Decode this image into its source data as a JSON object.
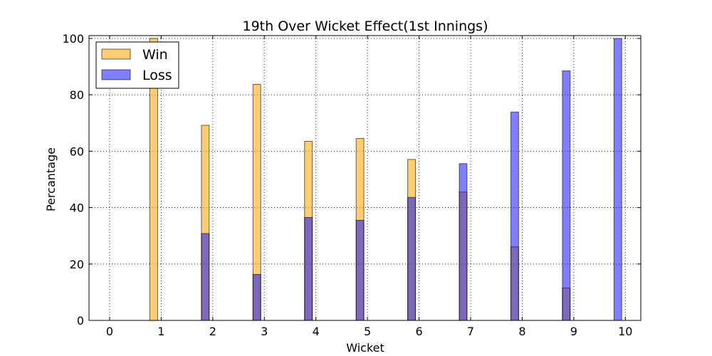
{
  "chart_data": {
    "type": "bar",
    "title": "19th Over Wicket Effect(1st Innings)",
    "xlabel": "Wicket",
    "ylabel": "Percantage",
    "xlim": [
      -0.4,
      10.3
    ],
    "ylim": [
      0,
      101
    ],
    "x_ticks": [
      0,
      1,
      2,
      3,
      4,
      5,
      6,
      7,
      8,
      9,
      10
    ],
    "y_ticks": [
      0,
      20,
      40,
      60,
      80,
      100
    ],
    "grid": true,
    "legend_position": "top-left",
    "bar_width": 0.15,
    "series": [
      {
        "name": "Win",
        "color": "#ffa500",
        "opacity": 0.55,
        "x": [
          1,
          2,
          3,
          4,
          5,
          6,
          7,
          8,
          9,
          10
        ],
        "values": [
          100,
          69.2,
          83.7,
          63.5,
          64.5,
          57.1,
          45.5,
          26.1,
          11.5,
          0
        ]
      },
      {
        "name": "Loss",
        "color": "#0000ff",
        "opacity": 0.5,
        "x": [
          1,
          2,
          3,
          4,
          5,
          6,
          7,
          8,
          9,
          10
        ],
        "values": [
          0,
          30.8,
          16.3,
          36.5,
          35.5,
          43.6,
          55.6,
          73.9,
          88.5,
          100
        ]
      }
    ]
  }
}
